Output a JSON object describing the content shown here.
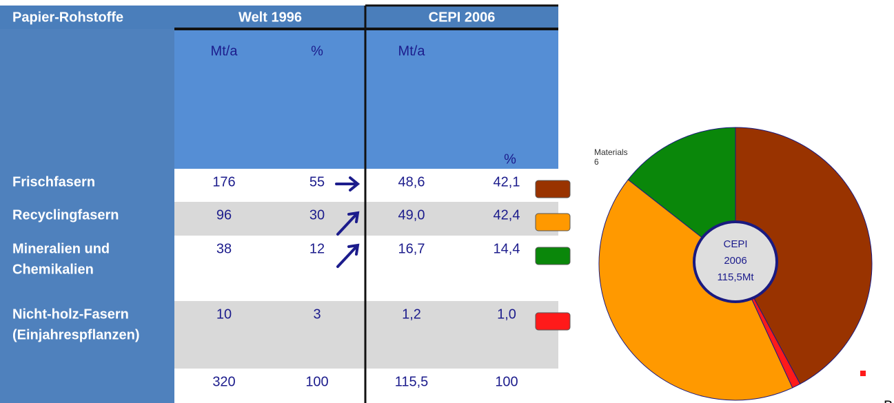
{
  "table": {
    "header": [
      "Papier-Rohstoffe",
      "Welt 1996",
      "CEPI 2006"
    ],
    "units": [
      "Mt/a",
      "%",
      "Mt/a",
      "%"
    ],
    "rows": [
      {
        "label": [
          "Frischfasern"
        ],
        "cells": [
          "176",
          "55",
          "48,6",
          "42,1"
        ]
      },
      {
        "label": [
          "Recyclingfasern"
        ],
        "cells": [
          "96",
          "30",
          "49,0",
          "42,4"
        ]
      },
      {
        "label": [
          "Mineralien und",
          "Chemikalien"
        ],
        "cells": [
          "38",
          "12",
          "16,7",
          "14,4"
        ]
      },
      {
        "label": [
          "Nicht-holz-Fasern",
          "(Einjahrespflanzen)"
        ],
        "cells": [
          "10",
          "3",
          "1,2",
          "1,0"
        ]
      }
    ],
    "total": [
      "320",
      "100",
      "115,5",
      "100"
    ]
  },
  "chart_data": {
    "type": "pie",
    "values": [
      42.1,
      1.0,
      42.4,
      14.4
    ],
    "colors": [
      "#993300",
      "#ff1a1a",
      "#ff9900",
      "#0a870a"
    ],
    "center_label": [
      "CEPI",
      "2006",
      "115,5Mt"
    ],
    "annotations": [
      "Materials",
      "6",
      "B"
    ]
  }
}
